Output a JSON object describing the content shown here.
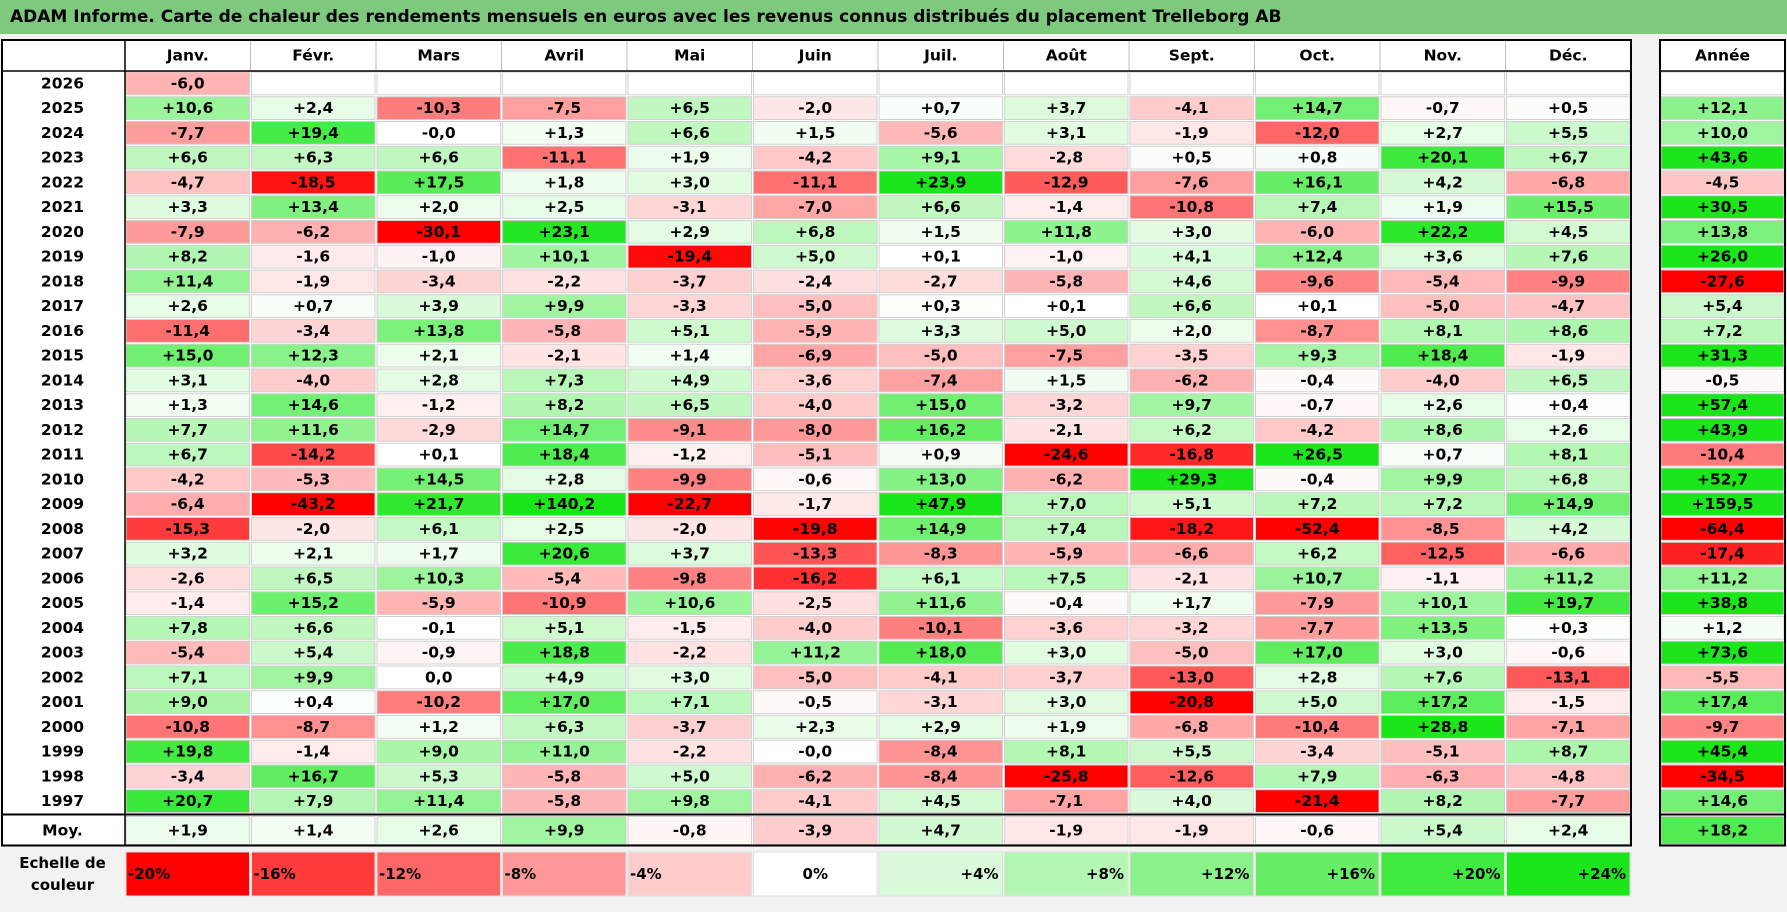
{
  "title": "ADAM Informe. Carte de chaleur des rendements mensuels en euros avec les revenus connus distribués du placement Trelleborg AB",
  "chart_data": {
    "type": "heatmap",
    "columns": [
      "Janv.",
      "Févr.",
      "Mars",
      "Avril",
      "Mai",
      "Juin",
      "Juil.",
      "Août",
      "Sept.",
      "Oct.",
      "Nov.",
      "Déc."
    ],
    "year_header": "Année",
    "rows": [
      {
        "year": "2026",
        "values": [
          "-6,0",
          "",
          "",
          "",
          "",
          "",
          "",
          "",
          "",
          "",
          "",
          ""
        ],
        "annual": ""
      },
      {
        "year": "2025",
        "values": [
          "+10,6",
          "+2,4",
          "-10,3",
          "-7,5",
          "+6,5",
          "-2,0",
          "+0,7",
          "+3,7",
          "-4,1",
          "+14,7",
          "-0,7",
          "+0,5"
        ],
        "annual": "+12,1"
      },
      {
        "year": "2024",
        "values": [
          "-7,7",
          "+19,4",
          "-0,0",
          "+1,3",
          "+6,6",
          "+1,5",
          "-5,6",
          "+3,1",
          "-1,9",
          "-12,0",
          "+2,7",
          "+5,5"
        ],
        "annual": "+10,0"
      },
      {
        "year": "2023",
        "values": [
          "+6,6",
          "+6,3",
          "+6,6",
          "-11,1",
          "+1,9",
          "-4,2",
          "+9,1",
          "-2,8",
          "+0,5",
          "+0,8",
          "+20,1",
          "+6,7"
        ],
        "annual": "+43,6"
      },
      {
        "year": "2022",
        "values": [
          "-4,7",
          "-18,5",
          "+17,5",
          "+1,8",
          "+3,0",
          "-11,1",
          "+23,9",
          "-12,9",
          "-7,6",
          "+16,1",
          "+4,2",
          "-6,8"
        ],
        "annual": "-4,5"
      },
      {
        "year": "2021",
        "values": [
          "+3,3",
          "+13,4",
          "+2,0",
          "+2,5",
          "-3,1",
          "-7,0",
          "+6,6",
          "-1,4",
          "-10,8",
          "+7,4",
          "+1,9",
          "+15,5"
        ],
        "annual": "+30,5"
      },
      {
        "year": "2020",
        "values": [
          "-7,9",
          "-6,2",
          "-30,1",
          "+23,1",
          "+2,9",
          "+6,8",
          "+1,5",
          "+11,8",
          "+3,0",
          "-6,0",
          "+22,2",
          "+4,5"
        ],
        "annual": "+13,8"
      },
      {
        "year": "2019",
        "values": [
          "+8,2",
          "-1,6",
          "-1,0",
          "+10,1",
          "-19,4",
          "+5,0",
          "+0,1",
          "-1,0",
          "+4,1",
          "+12,4",
          "+3,6",
          "+7,6"
        ],
        "annual": "+26,0"
      },
      {
        "year": "2018",
        "values": [
          "+11,4",
          "-1,9",
          "-3,4",
          "-2,2",
          "-3,7",
          "-2,4",
          "-2,7",
          "-5,8",
          "+4,6",
          "-9,6",
          "-5,4",
          "-9,9"
        ],
        "annual": "-27,6"
      },
      {
        "year": "2017",
        "values": [
          "+2,6",
          "+0,7",
          "+3,9",
          "+9,9",
          "-3,3",
          "-5,0",
          "+0,3",
          "+0,1",
          "+6,6",
          "+0,1",
          "-5,0",
          "-4,7"
        ],
        "annual": "+5,4"
      },
      {
        "year": "2016",
        "values": [
          "-11,4",
          "-3,4",
          "+13,8",
          "-5,8",
          "+5,1",
          "-5,9",
          "+3,3",
          "+5,0",
          "+2,0",
          "-8,7",
          "+8,1",
          "+8,6"
        ],
        "annual": "+7,2"
      },
      {
        "year": "2015",
        "values": [
          "+15,0",
          "+12,3",
          "+2,1",
          "-2,1",
          "+1,4",
          "-6,9",
          "-5,0",
          "-7,5",
          "-3,5",
          "+9,3",
          "+18,4",
          "-1,9"
        ],
        "annual": "+31,3"
      },
      {
        "year": "2014",
        "values": [
          "+3,1",
          "-4,0",
          "+2,8",
          "+7,3",
          "+4,9",
          "-3,6",
          "-7,4",
          "+1,5",
          "-6,2",
          "-0,4",
          "-4,0",
          "+6,5"
        ],
        "annual": "-0,5"
      },
      {
        "year": "2013",
        "values": [
          "+1,3",
          "+14,6",
          "-1,2",
          "+8,2",
          "+6,5",
          "-4,0",
          "+15,0",
          "-3,2",
          "+9,7",
          "-0,7",
          "+2,6",
          "+0,4"
        ],
        "annual": "+57,4"
      },
      {
        "year": "2012",
        "values": [
          "+7,7",
          "+11,6",
          "-2,9",
          "+14,7",
          "-9,1",
          "-8,0",
          "+16,2",
          "-2,1",
          "+6,2",
          "-4,2",
          "+8,6",
          "+2,6"
        ],
        "annual": "+43,9"
      },
      {
        "year": "2011",
        "values": [
          "+6,7",
          "-14,2",
          "+0,1",
          "+18,4",
          "-1,2",
          "-5,1",
          "+0,9",
          "-24,6",
          "-16,8",
          "+26,5",
          "+0,7",
          "+8,1"
        ],
        "annual": "-10,4"
      },
      {
        "year": "2010",
        "values": [
          "-4,2",
          "-5,3",
          "+14,5",
          "+2,8",
          "-9,9",
          "-0,6",
          "+13,0",
          "-6,2",
          "+29,3",
          "-0,4",
          "+9,9",
          "+6,8"
        ],
        "annual": "+52,7"
      },
      {
        "year": "2009",
        "values": [
          "-6,4",
          "-43,2",
          "+21,7",
          "+140,2",
          "-22,7",
          "-1,7",
          "+47,9",
          "+7,0",
          "+5,1",
          "+7,2",
          "+7,2",
          "+14,9"
        ],
        "annual": "+159,5"
      },
      {
        "year": "2008",
        "values": [
          "-15,3",
          "-2,0",
          "+6,1",
          "+2,5",
          "-2,0",
          "-19,8",
          "+14,9",
          "+7,4",
          "-18,2",
          "-52,4",
          "-8,5",
          "+4,2"
        ],
        "annual": "-64,4"
      },
      {
        "year": "2007",
        "values": [
          "+3,2",
          "+2,1",
          "+1,7",
          "+20,6",
          "+3,7",
          "-13,3",
          "-8,3",
          "-5,9",
          "-6,6",
          "+6,2",
          "-12,5",
          "-6,6"
        ],
        "annual": "-17,4"
      },
      {
        "year": "2006",
        "values": [
          "-2,6",
          "+6,5",
          "+10,3",
          "-5,4",
          "-9,8",
          "-16,2",
          "+6,1",
          "+7,5",
          "-2,1",
          "+10,7",
          "-1,1",
          "+11,2"
        ],
        "annual": "+11,2"
      },
      {
        "year": "2005",
        "values": [
          "-1,4",
          "+15,2",
          "-5,9",
          "-10,9",
          "+10,6",
          "-2,5",
          "+11,6",
          "-0,4",
          "+1,7",
          "-7,9",
          "+10,1",
          "+19,7"
        ],
        "annual": "+38,8"
      },
      {
        "year": "2004",
        "values": [
          "+7,8",
          "+6,6",
          "-0,1",
          "+5,1",
          "-1,5",
          "-4,0",
          "-10,1",
          "-3,6",
          "-3,2",
          "-7,7",
          "+13,5",
          "+0,3"
        ],
        "annual": "+1,2"
      },
      {
        "year": "2003",
        "values": [
          "-5,4",
          "+5,4",
          "-0,9",
          "+18,8",
          "-2,2",
          "+11,2",
          "+18,0",
          "+3,0",
          "-5,0",
          "+17,0",
          "+3,0",
          "-0,6"
        ],
        "annual": "+73,6"
      },
      {
        "year": "2002",
        "values": [
          "+7,1",
          "+9,9",
          "0,0",
          "+4,9",
          "+3,0",
          "-5,0",
          "-4,1",
          "-3,7",
          "-13,0",
          "+2,8",
          "+7,6",
          "-13,1"
        ],
        "annual": "-5,5"
      },
      {
        "year": "2001",
        "values": [
          "+9,0",
          "+0,4",
          "-10,2",
          "+17,0",
          "+7,1",
          "-0,5",
          "-3,1",
          "+3,0",
          "-20,8",
          "+5,0",
          "+17,2",
          "-1,5"
        ],
        "annual": "+17,4"
      },
      {
        "year": "2000",
        "values": [
          "-10,8",
          "-8,7",
          "+1,2",
          "+6,3",
          "-3,7",
          "+2,3",
          "+2,9",
          "+1,9",
          "-6,8",
          "-10,4",
          "+28,8",
          "-7,1"
        ],
        "annual": "-9,7"
      },
      {
        "year": "1999",
        "values": [
          "+19,8",
          "-1,4",
          "+9,0",
          "+11,0",
          "-2,2",
          "-0,0",
          "-8,4",
          "+8,1",
          "+5,5",
          "-3,4",
          "-5,1",
          "+8,7"
        ],
        "annual": "+45,4"
      },
      {
        "year": "1998",
        "values": [
          "-3,4",
          "+16,7",
          "+5,3",
          "-5,8",
          "+5,0",
          "-6,2",
          "-8,4",
          "-25,8",
          "-12,6",
          "+7,9",
          "-6,3",
          "-4,8"
        ],
        "annual": "-34,5"
      },
      {
        "year": "1997",
        "values": [
          "+20,7",
          "+7,9",
          "+11,4",
          "-5,8",
          "+9,8",
          "-4,1",
          "+4,5",
          "-7,1",
          "+4,0",
          "-21,4",
          "+8,2",
          "-7,7"
        ],
        "annual": "+14,6"
      }
    ],
    "average": {
      "label": "Moy.",
      "values": [
        "+1,9",
        "+1,4",
        "+2,6",
        "+9,9",
        "-0,8",
        "-3,9",
        "+4,7",
        "-1,9",
        "-1,9",
        "-0,6",
        "+5,4",
        "+2,4"
      ],
      "annual": "+18,2"
    },
    "scale": {
      "label_line1": "Echelle de",
      "label_line2": "couleur",
      "stops": [
        {
          "label": "-20%",
          "color": "#ff0000"
        },
        {
          "label": "-16%",
          "color": "#ff3b3b"
        },
        {
          "label": "-12%",
          "color": "#ff6666"
        },
        {
          "label": "-8%",
          "color": "#ff9999"
        },
        {
          "label": "-4%",
          "color": "#ffcccc"
        },
        {
          "label": "0%",
          "color": "#ffffff"
        },
        {
          "label": "+4%",
          "color": "#d9fbd9"
        },
        {
          "label": "+8%",
          "color": "#b3f7b3"
        },
        {
          "label": "+12%",
          "color": "#8cf38c"
        },
        {
          "label": "+16%",
          "color": "#66ef66"
        },
        {
          "label": "+20%",
          "color": "#40eb40"
        },
        {
          "label": "+24%",
          "color": "#1ae61a"
        }
      ]
    }
  },
  "colors": {
    "title_bar": "#7dc97d",
    "max_green": "#1ae61a",
    "max_red": "#ff0000"
  }
}
